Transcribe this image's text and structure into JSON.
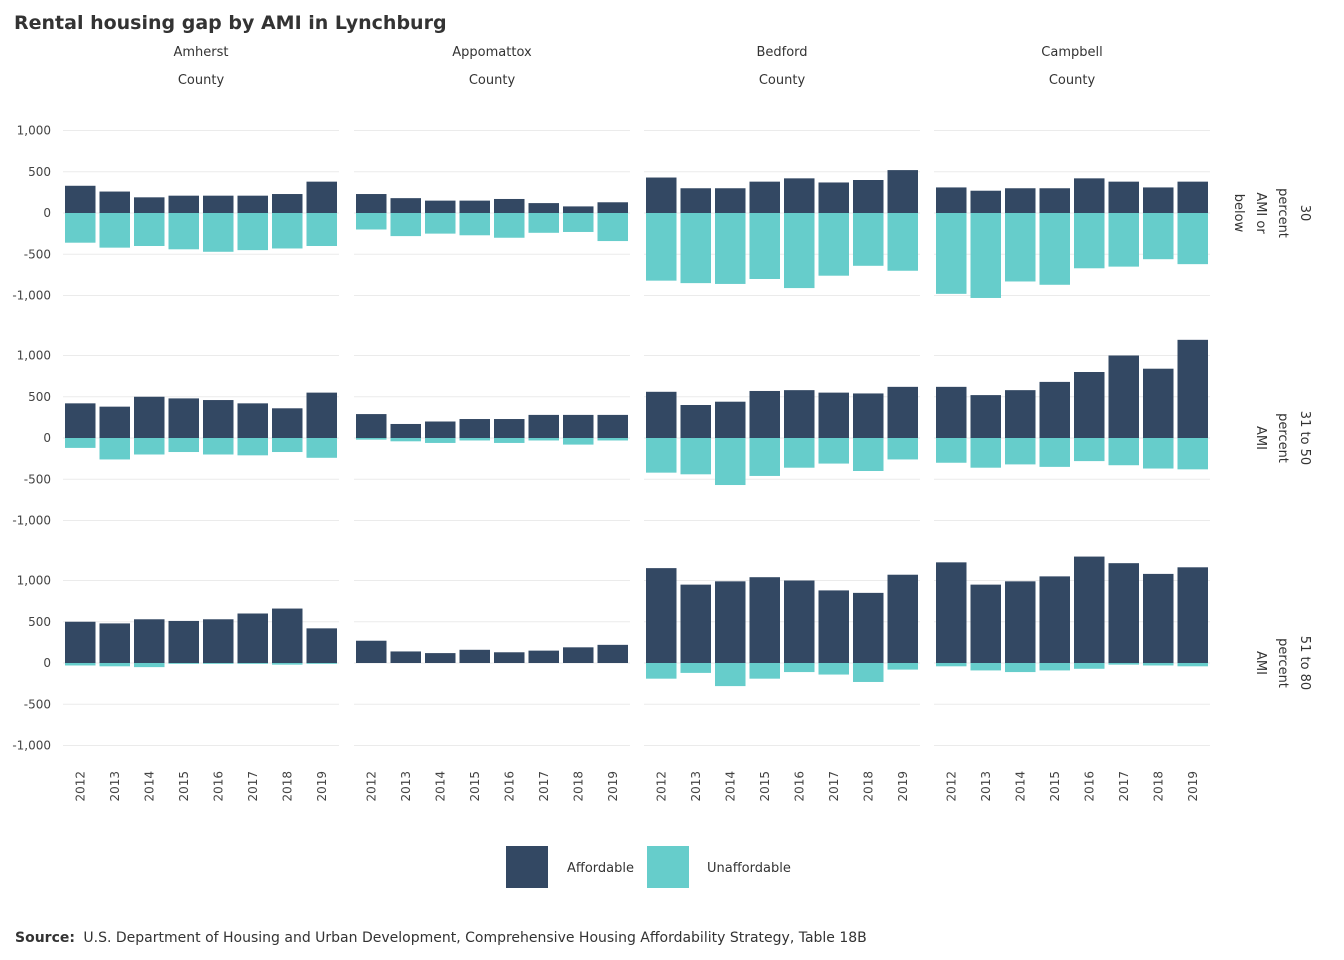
{
  "chart_data": {
    "type": "bar",
    "title": "Rental housing gap by AMI in Lynchburg",
    "x": [
      "2012",
      "2013",
      "2014",
      "2015",
      "2016",
      "2017",
      "2018",
      "2019"
    ],
    "columns": [
      {
        "label_lines": [
          "Amherst",
          "County"
        ]
      },
      {
        "label_lines": [
          "Appomattox",
          "County"
        ]
      },
      {
        "label_lines": [
          "Bedford",
          "County"
        ]
      },
      {
        "label_lines": [
          "Campbell",
          "County"
        ]
      }
    ],
    "rows": [
      {
        "label_lines": [
          "30",
          "percent",
          "AMI or",
          "below"
        ]
      },
      {
        "label_lines": [
          "31 to 50",
          "percent",
          "AMI"
        ]
      },
      {
        "label_lines": [
          "51 to 80",
          "percent",
          "AMI"
        ]
      }
    ],
    "yticks": [
      1000,
      500,
      0,
      -500,
      -1000
    ],
    "ytick_labels": [
      "1,000",
      "500",
      "0",
      "-500",
      "-1,000"
    ],
    "ylim": [
      -1100,
      1150
    ],
    "series": [
      {
        "name": "Affordable",
        "color": "#334863",
        "values": [
          [
            [
              330,
              260,
              190,
              210,
              210,
              210,
              230,
              380
            ],
            [
              230,
              180,
              150,
              150,
              170,
              120,
              80,
              130
            ],
            [
              430,
              300,
              300,
              380,
              420,
              370,
              400,
              520
            ],
            [
              310,
              270,
              300,
              300,
              420,
              380,
              310,
              380
            ]
          ],
          [
            [
              420,
              380,
              500,
              480,
              460,
              420,
              360,
              550
            ],
            [
              290,
              170,
              200,
              230,
              230,
              280,
              280,
              280
            ],
            [
              560,
              400,
              440,
              570,
              580,
              550,
              540,
              620
            ],
            [
              620,
              520,
              580,
              680,
              800,
              1000,
              840,
              1190
            ]
          ],
          [
            [
              500,
              480,
              530,
              510,
              530,
              600,
              660,
              420
            ],
            [
              270,
              140,
              120,
              160,
              130,
              150,
              190,
              220
            ],
            [
              1150,
              950,
              990,
              1040,
              1000,
              880,
              850,
              1070
            ],
            [
              1220,
              950,
              990,
              1050,
              1290,
              1210,
              1080,
              1160
            ]
          ]
        ]
      },
      {
        "name": "Unaffordable",
        "color": "#66cdcb",
        "values": [
          [
            [
              -360,
              -420,
              -400,
              -440,
              -470,
              -450,
              -430,
              -400
            ],
            [
              -200,
              -280,
              -250,
              -270,
              -300,
              -240,
              -230,
              -340
            ],
            [
              -820,
              -850,
              -860,
              -800,
              -910,
              -760,
              -640,
              -700
            ],
            [
              -980,
              -1030,
              -830,
              -870,
              -670,
              -650,
              -560,
              -620
            ]
          ],
          [
            [
              -120,
              -260,
              -200,
              -170,
              -200,
              -210,
              -170,
              -240
            ],
            [
              -20,
              -40,
              -60,
              -30,
              -60,
              -30,
              -80,
              -30
            ],
            [
              -420,
              -440,
              -570,
              -460,
              -360,
              -310,
              -400,
              -260
            ],
            [
              -300,
              -360,
              -320,
              -350,
              -280,
              -330,
              -370,
              -380
            ]
          ],
          [
            [
              -30,
              -40,
              -50,
              -10,
              -10,
              -10,
              -20,
              -10
            ],
            [
              0,
              0,
              0,
              0,
              0,
              0,
              0,
              0
            ],
            [
              -190,
              -120,
              -280,
              -190,
              -110,
              -140,
              -230,
              -80
            ],
            [
              -40,
              -90,
              -110,
              -90,
              -70,
              -20,
              -30,
              -40
            ]
          ]
        ]
      }
    ],
    "legend_position": "bottom",
    "grid": true
  },
  "source": {
    "label": "Source:",
    "text": "U.S. Department of Housing and Urban Development, Comprehensive Housing Affordability Strategy, Table 18B"
  }
}
